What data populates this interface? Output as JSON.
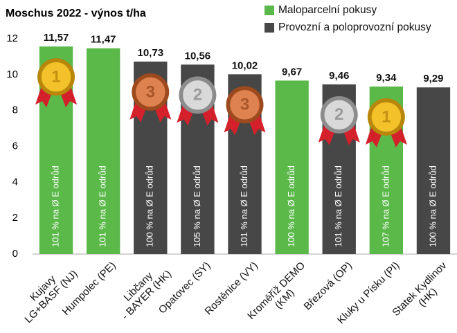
{
  "chart_data": {
    "type": "bar",
    "title": "Moschus 2022 - výnos t/ha",
    "categories": [
      "Kujavy\nLG+BASF (NJ)",
      "Humpolec (PE)",
      "Libčany\n- BAYER (HK)",
      "Opatovec (SY)",
      "Rostěnice (VY)",
      "Kroměříž DEMO\n(KM)",
      "Březová (OP)",
      "Kluky u Písku (PI)",
      "Statek Kydlinov\n(HK)"
    ],
    "series": [
      {
        "name": "Maloparcelní pokusy",
        "color": "#5bb94a",
        "values": [
          11.57,
          11.47,
          null,
          null,
          null,
          9.67,
          null,
          9.34,
          null
        ],
        "value_labels": [
          "11,57",
          "11,47",
          null,
          null,
          null,
          "9,67",
          null,
          "9,34",
          null
        ]
      },
      {
        "name": "Provozní a poloprovozní pokusy",
        "color": "#474747",
        "values": [
          null,
          null,
          10.73,
          10.56,
          10.02,
          null,
          9.46,
          null,
          9.29
        ],
        "value_labels": [
          null,
          null,
          "10,73",
          "10,56",
          "10,02",
          null,
          "9,46",
          null,
          "9,29"
        ]
      }
    ],
    "inner_labels": [
      "101 % na Ø E odrůd",
      "101 % na Ø E odrůd",
      "100 % na Ø E odrůd",
      "105 % na Ø E odrůd",
      "101 % na Ø E odrůd",
      "100 % na Ø E odrůd",
      "101 % na Ø E odrůd",
      "107 % na Ø E odrůd",
      "100 % na Ø E odrůd"
    ],
    "medals": [
      "1",
      null,
      "3",
      "2",
      "3",
      null,
      "2",
      "1",
      null
    ],
    "ylim": [
      0,
      12
    ],
    "yticks": [
      0,
      2,
      4,
      6,
      8,
      10,
      12
    ],
    "legend": "top-right"
  }
}
